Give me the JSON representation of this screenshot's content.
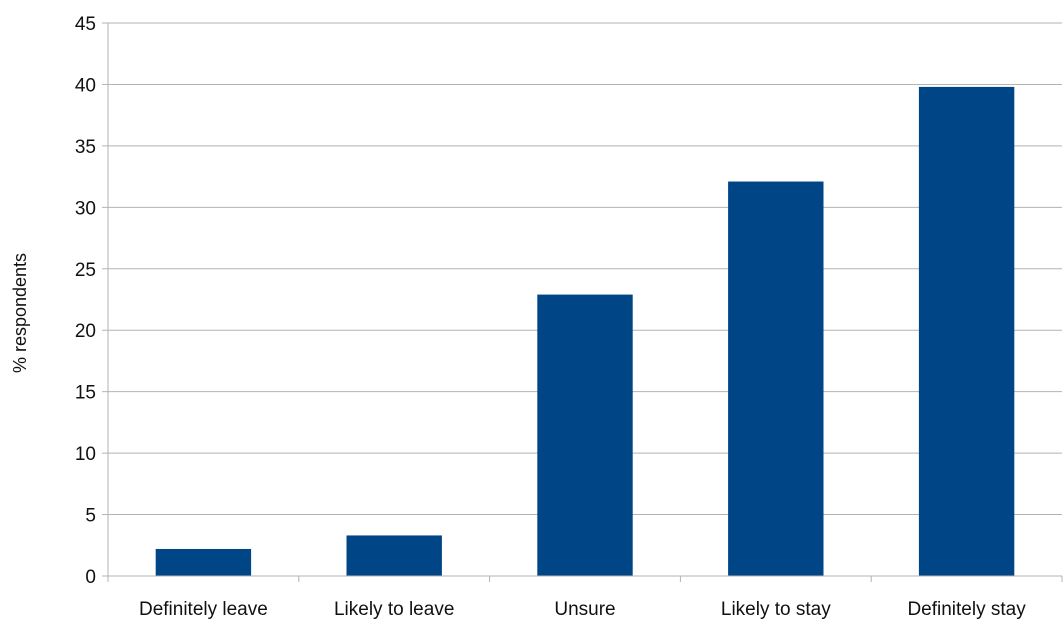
{
  "chart_data": {
    "type": "bar",
    "title": "",
    "xlabel": "",
    "ylabel": "% respondents",
    "categories": [
      "Definitely leave",
      "Likely to leave",
      "Unsure",
      "Likely to stay",
      "Definitely stay"
    ],
    "values": [
      2.2,
      3.3,
      22.9,
      32.1,
      39.8
    ],
    "ylim": [
      0,
      45
    ],
    "yticks": [
      0,
      5,
      10,
      15,
      20,
      25,
      30,
      35,
      40,
      45
    ],
    "grid": true,
    "legend": "none",
    "bar_color": "#004586",
    "grid_color": "#b3b3b3"
  }
}
